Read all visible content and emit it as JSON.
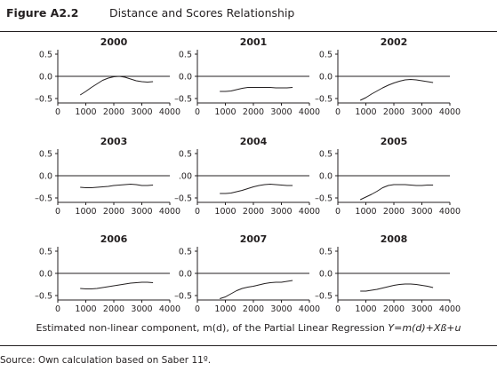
{
  "figure": {
    "label": "Figure A2.2",
    "title": "Distance and Scores Relationship",
    "caption_text": "Estimated non-linear component, m(d), of the Partial Linear Regression ",
    "caption_equation": "Y=m(d)+Xß+u",
    "source": "Source: Own calculation based on Saber 11º."
  },
  "colors": {
    "curve": "#231f20",
    "axis": "#231f20",
    "zero_line": "#231f20"
  },
  "chart_data": [
    {
      "type": "line",
      "title": "2000",
      "x": [
        800,
        1000,
        1200,
        1400,
        1600,
        1800,
        2000,
        2200,
        2400,
        2600,
        2800,
        3000,
        3200,
        3400
      ],
      "y": [
        -0.42,
        -0.34,
        -0.25,
        -0.17,
        -0.09,
        -0.04,
        -0.01,
        0.0,
        -0.02,
        -0.06,
        -0.1,
        -0.12,
        -0.13,
        -0.12
      ],
      "yticks": [
        0.5,
        0.0,
        -0.5
      ],
      "ytick_labels": [
        "0.5",
        "0.0",
        "–0.5"
      ],
      "xticks": [
        0,
        1000,
        2000,
        3000,
        4000
      ],
      "xtick_labels": [
        "0",
        "1000",
        "2000",
        "3000",
        "4000"
      ],
      "xlim": [
        0,
        4000
      ],
      "ylim": [
        -0.6,
        0.6
      ],
      "zero_line": true
    },
    {
      "type": "line",
      "title": "2001",
      "x": [
        800,
        1000,
        1200,
        1400,
        1600,
        1800,
        2000,
        2200,
        2400,
        2600,
        2800,
        3000,
        3200,
        3400
      ],
      "y": [
        -0.34,
        -0.34,
        -0.33,
        -0.3,
        -0.27,
        -0.25,
        -0.25,
        -0.25,
        -0.25,
        -0.25,
        -0.26,
        -0.26,
        -0.26,
        -0.25
      ],
      "yticks": [
        0.5,
        0.0,
        -0.5
      ],
      "ytick_labels": [
        "0.5",
        "0.0",
        "–0.5"
      ],
      "xticks": [
        0,
        1000,
        2000,
        3000,
        4000
      ],
      "xtick_labels": [
        "0",
        "1000",
        "2000",
        "3000",
        "4000"
      ],
      "xlim": [
        0,
        4000
      ],
      "ylim": [
        -0.6,
        0.6
      ],
      "zero_line": true
    },
    {
      "type": "line",
      "title": "2002",
      "x": [
        800,
        1000,
        1200,
        1400,
        1600,
        1800,
        2000,
        2200,
        2400,
        2600,
        2800,
        3000,
        3200,
        3400
      ],
      "y": [
        -0.54,
        -0.48,
        -0.4,
        -0.33,
        -0.26,
        -0.2,
        -0.15,
        -0.11,
        -0.08,
        -0.07,
        -0.08,
        -0.1,
        -0.12,
        -0.14
      ],
      "yticks": [
        0.5,
        0.0,
        -0.5
      ],
      "ytick_labels": [
        "0.5",
        "0.0",
        "–0.5"
      ],
      "xticks": [
        0,
        1000,
        2000,
        3000,
        4000
      ],
      "xtick_labels": [
        "0",
        "1000",
        "2000",
        "3000",
        "4000"
      ],
      "xlim": [
        0,
        4000
      ],
      "ylim": [
        -0.6,
        0.6
      ],
      "zero_line": true
    },
    {
      "type": "line",
      "title": "2003",
      "x": [
        800,
        1000,
        1200,
        1400,
        1600,
        1800,
        2000,
        2200,
        2400,
        2600,
        2800,
        3000,
        3200,
        3400
      ],
      "y": [
        -0.26,
        -0.27,
        -0.27,
        -0.26,
        -0.25,
        -0.24,
        -0.22,
        -0.21,
        -0.2,
        -0.19,
        -0.2,
        -0.22,
        -0.22,
        -0.21
      ],
      "yticks": [
        0.5,
        0.0,
        -0.5
      ],
      "ytick_labels": [
        "0.5",
        "0.0",
        "–0.5"
      ],
      "xticks": [
        0,
        1000,
        2000,
        3000,
        4000
      ],
      "xtick_labels": [
        "0",
        "1000",
        "2000",
        "3000",
        "4000"
      ],
      "xlim": [
        0,
        4000
      ],
      "ylim": [
        -0.6,
        0.6
      ],
      "zero_line": true
    },
    {
      "type": "line",
      "title": "2004",
      "x": [
        800,
        1000,
        1200,
        1400,
        1600,
        1800,
        2000,
        2200,
        2400,
        2600,
        2800,
        3000,
        3200,
        3400
      ],
      "y": [
        -0.4,
        -0.4,
        -0.39,
        -0.36,
        -0.33,
        -0.29,
        -0.25,
        -0.22,
        -0.2,
        -0.19,
        -0.2,
        -0.21,
        -0.22,
        -0.22
      ],
      "yticks": [
        0.5,
        0.0,
        -0.5
      ],
      "ytick_labels": [
        "0.5",
        ".00",
        "–0.5"
      ],
      "xticks": [
        0,
        1000,
        2000,
        3000,
        4000
      ],
      "xtick_labels": [
        "0",
        "1000",
        "2000",
        "3000",
        "4000"
      ],
      "xlim": [
        0,
        4000
      ],
      "ylim": [
        -0.6,
        0.6
      ],
      "zero_line": true
    },
    {
      "type": "line",
      "title": "2005",
      "x": [
        800,
        1000,
        1200,
        1400,
        1600,
        1800,
        2000,
        2200,
        2400,
        2600,
        2800,
        3000,
        3200,
        3400
      ],
      "y": [
        -0.54,
        -0.48,
        -0.42,
        -0.35,
        -0.27,
        -0.22,
        -0.2,
        -0.2,
        -0.2,
        -0.21,
        -0.22,
        -0.22,
        -0.21,
        -0.21
      ],
      "yticks": [
        0.5,
        0.0,
        -0.5
      ],
      "ytick_labels": [
        "0.5",
        "0.0",
        "–0.5"
      ],
      "xticks": [
        0,
        1000,
        2000,
        3000,
        4000
      ],
      "xtick_labels": [
        "0",
        "1000",
        "2000",
        "3000",
        "4000"
      ],
      "xlim": [
        0,
        4000
      ],
      "ylim": [
        -0.6,
        0.6
      ],
      "zero_line": true
    },
    {
      "type": "line",
      "title": "2006",
      "x": [
        800,
        1000,
        1200,
        1400,
        1600,
        1800,
        2000,
        2200,
        2400,
        2600,
        2800,
        3000,
        3200,
        3400
      ],
      "y": [
        -0.34,
        -0.35,
        -0.35,
        -0.34,
        -0.32,
        -0.3,
        -0.28,
        -0.26,
        -0.24,
        -0.22,
        -0.21,
        -0.2,
        -0.2,
        -0.21
      ],
      "yticks": [
        0.5,
        0.0,
        -0.5
      ],
      "ytick_labels": [
        "0.5",
        "0.0",
        "–0.5"
      ],
      "xticks": [
        0,
        1000,
        2000,
        3000,
        4000
      ],
      "xtick_labels": [
        "0",
        "1000",
        "2000",
        "3000",
        "4000"
      ],
      "xlim": [
        0,
        4000
      ],
      "ylim": [
        -0.6,
        0.6
      ],
      "zero_line": true
    },
    {
      "type": "line",
      "title": "2007",
      "x": [
        800,
        1000,
        1200,
        1400,
        1600,
        1800,
        2000,
        2200,
        2400,
        2600,
        2800,
        3000,
        3200,
        3400
      ],
      "y": [
        -0.57,
        -0.53,
        -0.46,
        -0.39,
        -0.34,
        -0.31,
        -0.29,
        -0.26,
        -0.23,
        -0.21,
        -0.2,
        -0.2,
        -0.18,
        -0.16
      ],
      "yticks": [
        0.5,
        0.0,
        -0.5
      ],
      "ytick_labels": [
        "0.5",
        "0.0",
        "–0.5"
      ],
      "xticks": [
        0,
        1000,
        2000,
        3000,
        4000
      ],
      "xtick_labels": [
        "0",
        "1000",
        "2000",
        "3000",
        "4000"
      ],
      "xlim": [
        0,
        4000
      ],
      "ylim": [
        -0.6,
        0.6
      ],
      "zero_line": true
    },
    {
      "type": "line",
      "title": "2008",
      "x": [
        800,
        1000,
        1200,
        1400,
        1600,
        1800,
        2000,
        2200,
        2400,
        2600,
        2800,
        3000,
        3200,
        3400
      ],
      "y": [
        -0.4,
        -0.4,
        -0.38,
        -0.36,
        -0.33,
        -0.3,
        -0.27,
        -0.25,
        -0.24,
        -0.24,
        -0.25,
        -0.27,
        -0.29,
        -0.32
      ],
      "yticks": [
        0.5,
        0.0,
        -0.5
      ],
      "ytick_labels": [
        "0.5",
        "0.0",
        "–0.5"
      ],
      "xticks": [
        0,
        1000,
        2000,
        3000,
        4000
      ],
      "xtick_labels": [
        "0",
        "1000",
        "2000",
        "3000",
        "4000"
      ],
      "xlim": [
        0,
        4000
      ],
      "ylim": [
        -0.6,
        0.6
      ],
      "zero_line": true
    }
  ]
}
